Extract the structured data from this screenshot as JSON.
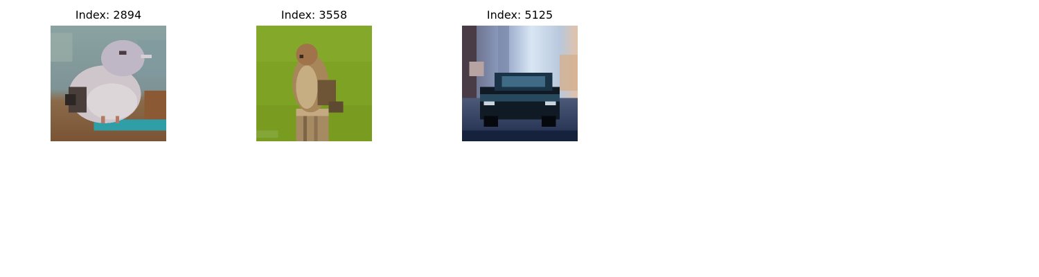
{
  "figure": {
    "panels": [
      {
        "title": "Index: 2894",
        "subject": "bird-perched"
      },
      {
        "title": "Index: 3558",
        "subject": "bird-on-post"
      },
      {
        "title": "Index: 5125",
        "subject": "car-street"
      }
    ]
  }
}
